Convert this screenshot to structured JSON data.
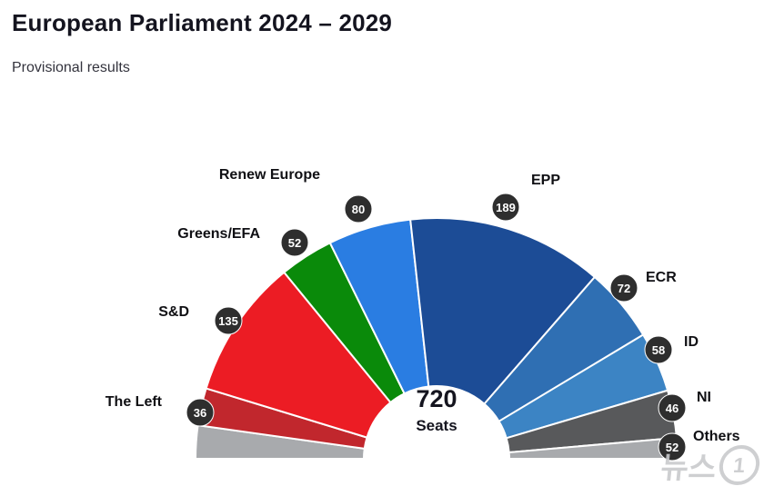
{
  "page": {
    "title": "European Parliament 2024 – 2029",
    "subtitle": "Provisional results"
  },
  "watermark": {
    "text": "뉴스",
    "badge": "1"
  },
  "chart_data": {
    "type": "pie",
    "variant": "hemicycle",
    "title": "European Parliament 2024 – 2029",
    "subtitle": "Provisional results",
    "total": {
      "value": "720",
      "label": "Seats"
    },
    "parties": [
      {
        "name": "The Left",
        "seats": 36,
        "color": "#c1272d"
      },
      {
        "name": "S&D",
        "seats": 135,
        "color": "#ec1c24"
      },
      {
        "name": "Greens/EFA",
        "seats": 52,
        "color": "#0a8a0a"
      },
      {
        "name": "Renew Europe",
        "seats": 80,
        "color": "#2a7de2"
      },
      {
        "name": "EPP",
        "seats": 189,
        "color": "#1c4c96"
      },
      {
        "name": "ECR",
        "seats": 72,
        "color": "#2f6fb3"
      },
      {
        "name": "ID",
        "seats": 58,
        "color": "#3c84c4"
      },
      {
        "name": "NI",
        "seats": 46,
        "color": "#58595b"
      },
      {
        "name": "Others",
        "seats": 52,
        "color": "#a8aaad"
      }
    ],
    "layout": {
      "arc_start_deg": 180,
      "arc_end_deg": 0,
      "others_split_ends": [
        32,
        20
      ],
      "badge_color": "#2e2e2e",
      "badge_text_color": "#ffffff",
      "legend_position": "around-arc",
      "grid": false
    }
  }
}
